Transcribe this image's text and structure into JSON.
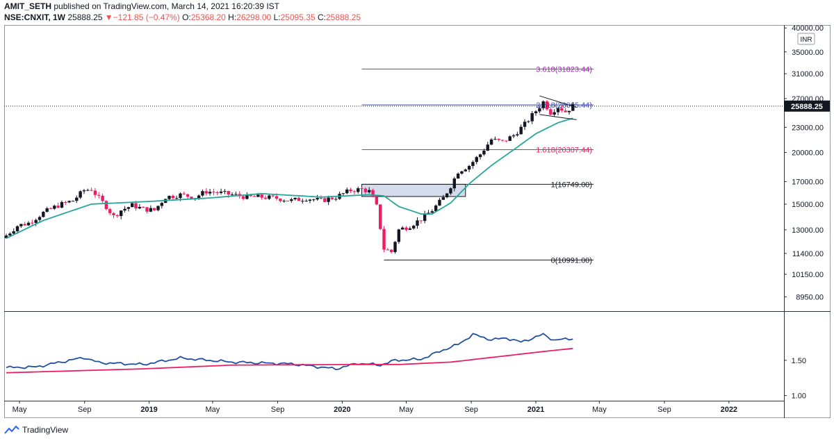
{
  "header": {
    "author": "AMIT_SETH",
    "published": "published on TradingView.com, March 14, 2021 16:20:39 IST",
    "symbol": "NSE:CNXIT, 1W",
    "last": "25888.25",
    "change": "−121.85 (−0.47%)",
    "o_label": "O:",
    "o": "25368.20",
    "h_label": "H:",
    "h": "26298.00",
    "l_label": "L:",
    "l": "25095.35",
    "c_label": "C:",
    "c": "25888.25"
  },
  "footer": {
    "brand": "TradingView"
  },
  "colors": {
    "up": "#131722",
    "down": "#e91e63",
    "ma": "#26a69a",
    "rsi": "#1e4fa3",
    "rsi_ma": "#e91e63",
    "fib_3618": "#9c27b0",
    "fib_2618": "#3f51b5",
    "fib_1618": "#e91e63",
    "fib_1": "#131722",
    "fib_0": "#131722"
  },
  "chart_data": [
    {
      "type": "candlestick",
      "title": "NSE:CNXIT, 1W",
      "currency_badge": "INR",
      "price_label": "25888.25",
      "y_scale": "log",
      "ylim": [
        8300,
        40500
      ],
      "y_ticks": [
        "40000.00",
        "35000.00",
        "31000.00",
        "27000.00",
        "23000.00",
        "20000.00",
        "17000.00",
        "15000.00",
        "13000.00",
        "11400.00",
        "10150.00",
        "8950.00"
      ],
      "y_tick_values": [
        40000,
        35000,
        31000,
        27000,
        23000,
        20000,
        17000,
        15000,
        13000,
        11400,
        10150,
        8950
      ],
      "x_ticks": [
        "May",
        "Sep",
        "2019",
        "May",
        "Sep",
        "2020",
        "May",
        "Sep",
        "2021",
        "May",
        "Sep",
        "2022"
      ],
      "x_tick_dates": [
        "2018-05",
        "2018-09",
        "2019-01",
        "2019-05",
        "2019-09",
        "2020-01",
        "2020-05",
        "2020-09",
        "2021-01",
        "2021-05",
        "2021-09",
        "2022-01"
      ],
      "x_range": [
        "2018-04-02",
        "2022-04-15"
      ],
      "last_price": 25888.25,
      "fib_levels": [
        {
          "label": "3.618(31823.44)",
          "value": 31823.44
        },
        {
          "label": "2.618(26065.44)",
          "value": 26065.44
        },
        {
          "label": "1.618(20307.44)",
          "value": 20307.44
        },
        {
          "label": "1(16749.00)",
          "value": 16749.0
        },
        {
          "label": "0(10991.00)",
          "value": 10991.0
        }
      ],
      "close_approx": [
        [
          "2018-04-06",
          12600
        ],
        [
          "2018-04-27",
          13300
        ],
        [
          "2018-05-18",
          13500
        ],
        [
          "2018-06-15",
          14300
        ],
        [
          "2018-07-13",
          14900
        ],
        [
          "2018-08-10",
          15300
        ],
        [
          "2018-08-31",
          16200
        ],
        [
          "2018-09-14",
          16300
        ],
        [
          "2018-09-28",
          15500
        ],
        [
          "2018-10-12",
          14800
        ],
        [
          "2018-10-26",
          14000
        ],
        [
          "2018-11-09",
          14500
        ],
        [
          "2018-11-30",
          14900
        ],
        [
          "2018-12-21",
          14600
        ],
        [
          "2019-01-11",
          14500
        ],
        [
          "2019-02-01",
          15600
        ],
        [
          "2019-03-01",
          15800
        ],
        [
          "2019-03-29",
          15600
        ],
        [
          "2019-04-19",
          16100
        ],
        [
          "2019-05-10",
          16000
        ],
        [
          "2019-06-07",
          15800
        ],
        [
          "2019-07-05",
          15600
        ],
        [
          "2019-08-02",
          15600
        ],
        [
          "2019-08-30",
          15500
        ],
        [
          "2019-09-27",
          15300
        ],
        [
          "2019-10-25",
          15500
        ],
        [
          "2019-11-22",
          15300
        ],
        [
          "2019-12-20",
          15600
        ],
        [
          "2020-01-17",
          16200
        ],
        [
          "2020-02-07",
          16300
        ],
        [
          "2020-02-21",
          16100
        ],
        [
          "2020-03-06",
          14800
        ],
        [
          "2020-03-20",
          11700
        ],
        [
          "2020-04-03",
          11500
        ],
        [
          "2020-04-17",
          13000
        ],
        [
          "2020-05-08",
          13300
        ],
        [
          "2020-05-29",
          13800
        ],
        [
          "2020-06-19",
          14500
        ],
        [
          "2020-07-10",
          15500
        ],
        [
          "2020-07-24",
          16600
        ],
        [
          "2020-08-07",
          18000
        ],
        [
          "2020-08-28",
          18600
        ],
        [
          "2020-09-18",
          19800
        ],
        [
          "2020-10-09",
          21500
        ],
        [
          "2020-10-30",
          21200
        ],
        [
          "2020-11-20",
          22000
        ],
        [
          "2020-12-11",
          23400
        ],
        [
          "2021-01-01",
          25200
        ],
        [
          "2021-01-15",
          26500
        ],
        [
          "2021-01-29",
          25000
        ],
        [
          "2021-02-12",
          25800
        ],
        [
          "2021-02-26",
          25100
        ],
        [
          "2021-03-12",
          25888
        ]
      ],
      "ma_approx": [
        [
          "2018-04-06",
          12400
        ],
        [
          "2018-06-15",
          13700
        ],
        [
          "2018-09-14",
          15000
        ],
        [
          "2018-12-21",
          15200
        ],
        [
          "2019-04-19",
          15500
        ],
        [
          "2019-08-02",
          15900
        ],
        [
          "2019-11-22",
          15600
        ],
        [
          "2020-02-21",
          15800
        ],
        [
          "2020-03-20",
          15700
        ],
        [
          "2020-04-17",
          14800
        ],
        [
          "2020-05-29",
          14200
        ],
        [
          "2020-06-19",
          14200
        ],
        [
          "2020-07-24",
          15100
        ],
        [
          "2020-08-28",
          16800
        ],
        [
          "2020-10-09",
          18600
        ],
        [
          "2020-11-20",
          20300
        ],
        [
          "2021-01-01",
          22200
        ],
        [
          "2021-02-12",
          23600
        ],
        [
          "2021-03-12",
          24200
        ]
      ]
    },
    {
      "type": "line",
      "title": "",
      "y_scale": "log",
      "ylim": [
        0.95,
        2.6
      ],
      "y_ticks": [
        "1.50",
        "1.00"
      ],
      "y_tick_values": [
        1.5,
        1.0
      ],
      "series": [
        {
          "values_approx": [
            [
              "2018-04-06",
              1.38
            ],
            [
              "2018-06-01",
              1.39
            ],
            [
              "2018-08-31",
              1.55
            ],
            [
              "2018-09-28",
              1.46
            ],
            [
              "2018-12-21",
              1.43
            ],
            [
              "2019-03-01",
              1.54
            ],
            [
              "2019-06-07",
              1.47
            ],
            [
              "2019-09-27",
              1.44
            ],
            [
              "2019-12-20",
              1.36
            ],
            [
              "2020-01-31",
              1.45
            ],
            [
              "2020-03-13",
              1.42
            ],
            [
              "2020-04-10",
              1.5
            ],
            [
              "2020-05-29",
              1.52
            ],
            [
              "2020-07-10",
              1.69
            ],
            [
              "2020-08-07",
              1.8
            ],
            [
              "2020-09-04",
              2.02
            ],
            [
              "2020-10-09",
              1.9
            ],
            [
              "2020-11-06",
              1.94
            ],
            [
              "2020-12-04",
              1.85
            ],
            [
              "2021-01-15",
              2.02
            ],
            [
              "2021-02-05",
              1.89
            ],
            [
              "2021-03-12",
              1.93
            ]
          ]
        },
        {
          "values_approx": [
            [
              "2018-04-06",
              1.3
            ],
            [
              "2018-12-21",
              1.36
            ],
            [
              "2019-06-07",
              1.42
            ],
            [
              "2020-01-31",
              1.43
            ],
            [
              "2020-04-17",
              1.43
            ],
            [
              "2020-07-24",
              1.47
            ],
            [
              "2020-10-09",
              1.55
            ],
            [
              "2021-01-15",
              1.66
            ],
            [
              "2021-03-12",
              1.72
            ]
          ]
        }
      ]
    }
  ]
}
